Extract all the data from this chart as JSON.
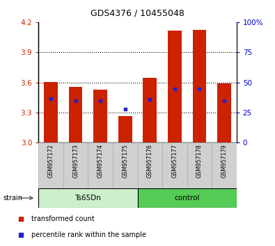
{
  "title": "GDS4376 / 10455048",
  "samples": [
    "GSM957172",
    "GSM957173",
    "GSM957174",
    "GSM957175",
    "GSM957176",
    "GSM957177",
    "GSM957178",
    "GSM957179"
  ],
  "bar_values": [
    3.605,
    3.555,
    3.53,
    3.265,
    3.645,
    4.115,
    4.12,
    3.59
  ],
  "bar_bottom": 3.0,
  "blue_dot_values": [
    3.44,
    3.42,
    3.415,
    3.335,
    3.43,
    3.535,
    3.535,
    3.42
  ],
  "bar_color": "#cc2200",
  "dot_color": "#2222cc",
  "ylim": [
    3.0,
    4.2
  ],
  "yticks_left": [
    3.0,
    3.3,
    3.6,
    3.9,
    4.2
  ],
  "yticks_right": [
    0,
    25,
    50,
    75,
    100
  ],
  "grid_yticks": [
    3.3,
    3.6,
    3.9
  ],
  "ts65dn_color": "#ccf0cc",
  "control_color": "#55cc55",
  "bar_width": 0.55,
  "legend_red_label": "transformed count",
  "legend_blue_label": "percentile rank within the sample",
  "tick_label_color_left": "#cc2200",
  "tick_label_color_right": "#0000cc",
  "sample_box_color": "#d0d0d0",
  "n_ts65dn": 4,
  "n_control": 4
}
